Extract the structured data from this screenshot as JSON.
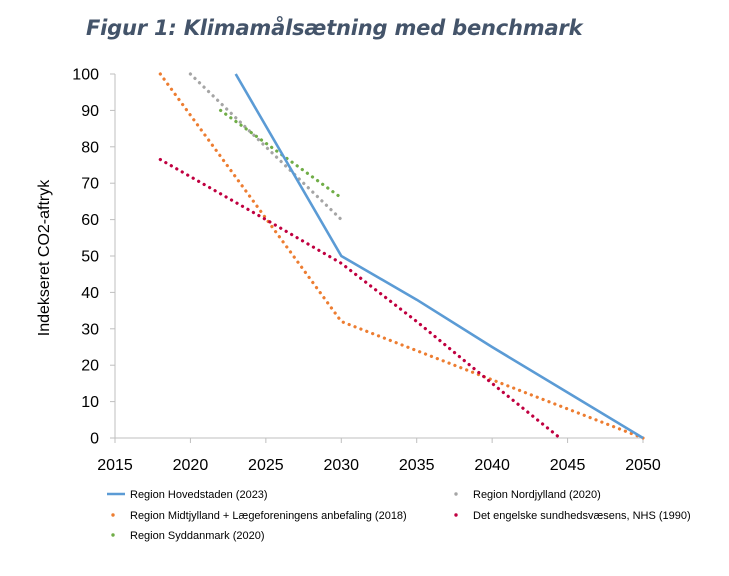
{
  "chart_data": {
    "type": "line",
    "title": "Figur 1: Klimamålsætning med benchmark",
    "xlabel": "",
    "ylabel": "Indekseret CO2-aftryk",
    "xlim": [
      2015,
      2050
    ],
    "ylim": [
      0,
      100
    ],
    "x_ticks": [
      2015,
      2020,
      2025,
      2030,
      2035,
      2040,
      2045,
      2050
    ],
    "y_ticks": [
      0,
      10,
      20,
      30,
      40,
      50,
      60,
      70,
      80,
      90,
      100
    ],
    "grid": false,
    "legend_position": "bottom",
    "series": [
      {
        "name": "Region Hovedstaden (2023)",
        "style": "solid",
        "color": "#5b9bd5",
        "points": [
          [
            2023,
            100
          ],
          [
            2030,
            50
          ],
          [
            2035,
            38
          ],
          [
            2040,
            25
          ],
          [
            2045,
            12.5
          ],
          [
            2050,
            0
          ]
        ]
      },
      {
        "name": "Region Nordjylland (2020)",
        "style": "dotted",
        "color": "#a5a5a5",
        "points": [
          [
            2020,
            100
          ],
          [
            2030,
            60
          ]
        ]
      },
      {
        "name": "Region Midtjylland + Lægeforeningens anbefaling (2018)",
        "style": "dotted",
        "color": "#ed7d31",
        "points": [
          [
            2018,
            100
          ],
          [
            2030,
            32
          ],
          [
            2040,
            16
          ],
          [
            2050,
            0
          ]
        ]
      },
      {
        "name": "Det engelske sundhedsvæsens, NHS (1990)",
        "style": "dotted",
        "color": "#c00040",
        "points": [
          [
            2018,
            76.5
          ],
          [
            2025,
            60
          ],
          [
            2030,
            48
          ],
          [
            2035,
            32
          ],
          [
            2040,
            15
          ],
          [
            2044.5,
            0
          ]
        ]
      },
      {
        "name": "Region Syddanmark (2020)",
        "style": "dotted",
        "color": "#70ad47",
        "points": [
          [
            2022,
            90
          ],
          [
            2030,
            66
          ]
        ]
      }
    ]
  }
}
